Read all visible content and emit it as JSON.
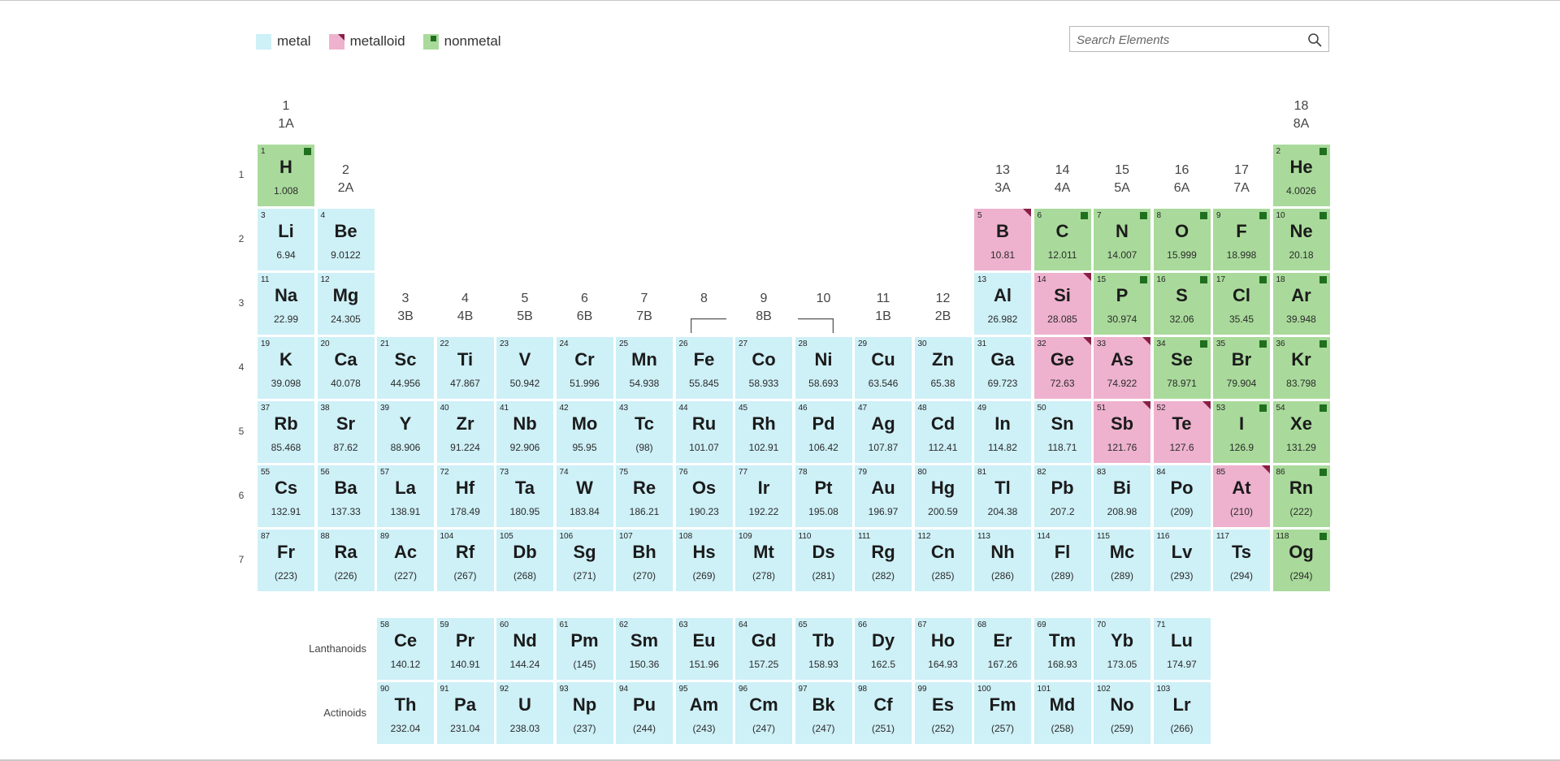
{
  "legend": [
    {
      "label": "metal",
      "type": "metal"
    },
    {
      "label": "metalloid",
      "type": "metalloid"
    },
    {
      "label": "nonmetal",
      "type": "nonmetal"
    }
  ],
  "search": {
    "placeholder": "Search Elements"
  },
  "icons": {
    "search": "search-icon"
  },
  "colors": {
    "metal": "#cef0f7",
    "metalloid": "#eeb2ce",
    "nonmetal": "#a9da9b",
    "nonmetal_mark": "#1f6f1f",
    "metalloid_mark": "#8a1f45"
  },
  "groups": [
    {
      "col": 1,
      "num": "1",
      "sub": "1A"
    },
    {
      "col": 2,
      "num": "2",
      "sub": "2A"
    },
    {
      "col": 3,
      "num": "3",
      "sub": "3B"
    },
    {
      "col": 4,
      "num": "4",
      "sub": "4B"
    },
    {
      "col": 5,
      "num": "5",
      "sub": "5B"
    },
    {
      "col": 6,
      "num": "6",
      "sub": "6B"
    },
    {
      "col": 7,
      "num": "7",
      "sub": "7B"
    },
    {
      "col": 8,
      "num": "8",
      "sub": ""
    },
    {
      "col": 9,
      "num": "9",
      "sub": "8B"
    },
    {
      "col": 10,
      "num": "10",
      "sub": ""
    },
    {
      "col": 11,
      "num": "11",
      "sub": "1B"
    },
    {
      "col": 12,
      "num": "12",
      "sub": "2B"
    },
    {
      "col": 13,
      "num": "13",
      "sub": "3A"
    },
    {
      "col": 14,
      "num": "14",
      "sub": "4A"
    },
    {
      "col": 15,
      "num": "15",
      "sub": "5A"
    },
    {
      "col": 16,
      "num": "16",
      "sub": "6A"
    },
    {
      "col": 17,
      "num": "17",
      "sub": "7A"
    },
    {
      "col": 18,
      "num": "18",
      "sub": "8A"
    }
  ],
  "periods": [
    "1",
    "2",
    "3",
    "4",
    "5",
    "6",
    "7"
  ],
  "series_labels": {
    "lanthanoids": "Lanthanoids",
    "actinoids": "Actinoids"
  },
  "elements": [
    {
      "n": "1",
      "s": "H",
      "m": "1.008",
      "t": "nonmetal",
      "r": 1,
      "c": 1
    },
    {
      "n": "2",
      "s": "He",
      "m": "4.0026",
      "t": "nonmetal",
      "r": 1,
      "c": 18
    },
    {
      "n": "3",
      "s": "Li",
      "m": "6.94",
      "t": "metal",
      "r": 2,
      "c": 1
    },
    {
      "n": "4",
      "s": "Be",
      "m": "9.0122",
      "t": "metal",
      "r": 2,
      "c": 2
    },
    {
      "n": "5",
      "s": "B",
      "m": "10.81",
      "t": "metalloid",
      "r": 2,
      "c": 13
    },
    {
      "n": "6",
      "s": "C",
      "m": "12.011",
      "t": "nonmetal",
      "r": 2,
      "c": 14
    },
    {
      "n": "7",
      "s": "N",
      "m": "14.007",
      "t": "nonmetal",
      "r": 2,
      "c": 15
    },
    {
      "n": "8",
      "s": "O",
      "m": "15.999",
      "t": "nonmetal",
      "r": 2,
      "c": 16
    },
    {
      "n": "9",
      "s": "F",
      "m": "18.998",
      "t": "nonmetal",
      "r": 2,
      "c": 17
    },
    {
      "n": "10",
      "s": "Ne",
      "m": "20.18",
      "t": "nonmetal",
      "r": 2,
      "c": 18
    },
    {
      "n": "11",
      "s": "Na",
      "m": "22.99",
      "t": "metal",
      "r": 3,
      "c": 1
    },
    {
      "n": "12",
      "s": "Mg",
      "m": "24.305",
      "t": "metal",
      "r": 3,
      "c": 2
    },
    {
      "n": "13",
      "s": "Al",
      "m": "26.982",
      "t": "metal",
      "r": 3,
      "c": 13
    },
    {
      "n": "14",
      "s": "Si",
      "m": "28.085",
      "t": "metalloid",
      "r": 3,
      "c": 14
    },
    {
      "n": "15",
      "s": "P",
      "m": "30.974",
      "t": "nonmetal",
      "r": 3,
      "c": 15
    },
    {
      "n": "16",
      "s": "S",
      "m": "32.06",
      "t": "nonmetal",
      "r": 3,
      "c": 16
    },
    {
      "n": "17",
      "s": "Cl",
      "m": "35.45",
      "t": "nonmetal",
      "r": 3,
      "c": 17
    },
    {
      "n": "18",
      "s": "Ar",
      "m": "39.948",
      "t": "nonmetal",
      "r": 3,
      "c": 18
    },
    {
      "n": "19",
      "s": "K",
      "m": "39.098",
      "t": "metal",
      "r": 4,
      "c": 1
    },
    {
      "n": "20",
      "s": "Ca",
      "m": "40.078",
      "t": "metal",
      "r": 4,
      "c": 2
    },
    {
      "n": "21",
      "s": "Sc",
      "m": "44.956",
      "t": "metal",
      "r": 4,
      "c": 3
    },
    {
      "n": "22",
      "s": "Ti",
      "m": "47.867",
      "t": "metal",
      "r": 4,
      "c": 4
    },
    {
      "n": "23",
      "s": "V",
      "m": "50.942",
      "t": "metal",
      "r": 4,
      "c": 5
    },
    {
      "n": "24",
      "s": "Cr",
      "m": "51.996",
      "t": "metal",
      "r": 4,
      "c": 6
    },
    {
      "n": "25",
      "s": "Mn",
      "m": "54.938",
      "t": "metal",
      "r": 4,
      "c": 7
    },
    {
      "n": "26",
      "s": "Fe",
      "m": "55.845",
      "t": "metal",
      "r": 4,
      "c": 8
    },
    {
      "n": "27",
      "s": "Co",
      "m": "58.933",
      "t": "metal",
      "r": 4,
      "c": 9
    },
    {
      "n": "28",
      "s": "Ni",
      "m": "58.693",
      "t": "metal",
      "r": 4,
      "c": 10
    },
    {
      "n": "29",
      "s": "Cu",
      "m": "63.546",
      "t": "metal",
      "r": 4,
      "c": 11
    },
    {
      "n": "30",
      "s": "Zn",
      "m": "65.38",
      "t": "metal",
      "r": 4,
      "c": 12
    },
    {
      "n": "31",
      "s": "Ga",
      "m": "69.723",
      "t": "metal",
      "r": 4,
      "c": 13
    },
    {
      "n": "32",
      "s": "Ge",
      "m": "72.63",
      "t": "metalloid",
      "r": 4,
      "c": 14
    },
    {
      "n": "33",
      "s": "As",
      "m": "74.922",
      "t": "metalloid",
      "r": 4,
      "c": 15
    },
    {
      "n": "34",
      "s": "Se",
      "m": "78.971",
      "t": "nonmetal",
      "r": 4,
      "c": 16
    },
    {
      "n": "35",
      "s": "Br",
      "m": "79.904",
      "t": "nonmetal",
      "r": 4,
      "c": 17
    },
    {
      "n": "36",
      "s": "Kr",
      "m": "83.798",
      "t": "nonmetal",
      "r": 4,
      "c": 18
    },
    {
      "n": "37",
      "s": "Rb",
      "m": "85.468",
      "t": "metal",
      "r": 5,
      "c": 1
    },
    {
      "n": "38",
      "s": "Sr",
      "m": "87.62",
      "t": "metal",
      "r": 5,
      "c": 2
    },
    {
      "n": "39",
      "s": "Y",
      "m": "88.906",
      "t": "metal",
      "r": 5,
      "c": 3
    },
    {
      "n": "40",
      "s": "Zr",
      "m": "91.224",
      "t": "metal",
      "r": 5,
      "c": 4
    },
    {
      "n": "41",
      "s": "Nb",
      "m": "92.906",
      "t": "metal",
      "r": 5,
      "c": 5
    },
    {
      "n": "42",
      "s": "Mo",
      "m": "95.95",
      "t": "metal",
      "r": 5,
      "c": 6
    },
    {
      "n": "43",
      "s": "Tc",
      "m": "(98)",
      "t": "metal",
      "r": 5,
      "c": 7
    },
    {
      "n": "44",
      "s": "Ru",
      "m": "101.07",
      "t": "metal",
      "r": 5,
      "c": 8
    },
    {
      "n": "45",
      "s": "Rh",
      "m": "102.91",
      "t": "metal",
      "r": 5,
      "c": 9
    },
    {
      "n": "46",
      "s": "Pd",
      "m": "106.42",
      "t": "metal",
      "r": 5,
      "c": 10
    },
    {
      "n": "47",
      "s": "Ag",
      "m": "107.87",
      "t": "metal",
      "r": 5,
      "c": 11
    },
    {
      "n": "48",
      "s": "Cd",
      "m": "112.41",
      "t": "metal",
      "r": 5,
      "c": 12
    },
    {
      "n": "49",
      "s": "In",
      "m": "114.82",
      "t": "metal",
      "r": 5,
      "c": 13
    },
    {
      "n": "50",
      "s": "Sn",
      "m": "118.71",
      "t": "metal",
      "r": 5,
      "c": 14
    },
    {
      "n": "51",
      "s": "Sb",
      "m": "121.76",
      "t": "metalloid",
      "r": 5,
      "c": 15
    },
    {
      "n": "52",
      "s": "Te",
      "m": "127.6",
      "t": "metalloid",
      "r": 5,
      "c": 16
    },
    {
      "n": "53",
      "s": "I",
      "m": "126.9",
      "t": "nonmetal",
      "r": 5,
      "c": 17
    },
    {
      "n": "54",
      "s": "Xe",
      "m": "131.29",
      "t": "nonmetal",
      "r": 5,
      "c": 18
    },
    {
      "n": "55",
      "s": "Cs",
      "m": "132.91",
      "t": "metal",
      "r": 6,
      "c": 1
    },
    {
      "n": "56",
      "s": "Ba",
      "m": "137.33",
      "t": "metal",
      "r": 6,
      "c": 2
    },
    {
      "n": "57",
      "s": "La",
      "m": "138.91",
      "t": "metal",
      "r": 6,
      "c": 3
    },
    {
      "n": "72",
      "s": "Hf",
      "m": "178.49",
      "t": "metal",
      "r": 6,
      "c": 4
    },
    {
      "n": "73",
      "s": "Ta",
      "m": "180.95",
      "t": "metal",
      "r": 6,
      "c": 5
    },
    {
      "n": "74",
      "s": "W",
      "m": "183.84",
      "t": "metal",
      "r": 6,
      "c": 6
    },
    {
      "n": "75",
      "s": "Re",
      "m": "186.21",
      "t": "metal",
      "r": 6,
      "c": 7
    },
    {
      "n": "76",
      "s": "Os",
      "m": "190.23",
      "t": "metal",
      "r": 6,
      "c": 8
    },
    {
      "n": "77",
      "s": "Ir",
      "m": "192.22",
      "t": "metal",
      "r": 6,
      "c": 9
    },
    {
      "n": "78",
      "s": "Pt",
      "m": "195.08",
      "t": "metal",
      "r": 6,
      "c": 10
    },
    {
      "n": "79",
      "s": "Au",
      "m": "196.97",
      "t": "metal",
      "r": 6,
      "c": 11
    },
    {
      "n": "80",
      "s": "Hg",
      "m": "200.59",
      "t": "metal",
      "r": 6,
      "c": 12
    },
    {
      "n": "81",
      "s": "Tl",
      "m": "204.38",
      "t": "metal",
      "r": 6,
      "c": 13
    },
    {
      "n": "82",
      "s": "Pb",
      "m": "207.2",
      "t": "metal",
      "r": 6,
      "c": 14
    },
    {
      "n": "83",
      "s": "Bi",
      "m": "208.98",
      "t": "metal",
      "r": 6,
      "c": 15
    },
    {
      "n": "84",
      "s": "Po",
      "m": "(209)",
      "t": "metal",
      "r": 6,
      "c": 16
    },
    {
      "n": "85",
      "s": "At",
      "m": "(210)",
      "t": "metalloid",
      "r": 6,
      "c": 17
    },
    {
      "n": "86",
      "s": "Rn",
      "m": "(222)",
      "t": "nonmetal",
      "r": 6,
      "c": 18
    },
    {
      "n": "87",
      "s": "Fr",
      "m": "(223)",
      "t": "metal",
      "r": 7,
      "c": 1
    },
    {
      "n": "88",
      "s": "Ra",
      "m": "(226)",
      "t": "metal",
      "r": 7,
      "c": 2
    },
    {
      "n": "89",
      "s": "Ac",
      "m": "(227)",
      "t": "metal",
      "r": 7,
      "c": 3
    },
    {
      "n": "104",
      "s": "Rf",
      "m": "(267)",
      "t": "metal",
      "r": 7,
      "c": 4
    },
    {
      "n": "105",
      "s": "Db",
      "m": "(268)",
      "t": "metal",
      "r": 7,
      "c": 5
    },
    {
      "n": "106",
      "s": "Sg",
      "m": "(271)",
      "t": "metal",
      "r": 7,
      "c": 6
    },
    {
      "n": "107",
      "s": "Bh",
      "m": "(270)",
      "t": "metal",
      "r": 7,
      "c": 7
    },
    {
      "n": "108",
      "s": "Hs",
      "m": "(269)",
      "t": "metal",
      "r": 7,
      "c": 8
    },
    {
      "n": "109",
      "s": "Mt",
      "m": "(278)",
      "t": "metal",
      "r": 7,
      "c": 9
    },
    {
      "n": "110",
      "s": "Ds",
      "m": "(281)",
      "t": "metal",
      "r": 7,
      "c": 10
    },
    {
      "n": "111",
      "s": "Rg",
      "m": "(282)",
      "t": "metal",
      "r": 7,
      "c": 11
    },
    {
      "n": "112",
      "s": "Cn",
      "m": "(285)",
      "t": "metal",
      "r": 7,
      "c": 12
    },
    {
      "n": "113",
      "s": "Nh",
      "m": "(286)",
      "t": "metal",
      "r": 7,
      "c": 13
    },
    {
      "n": "114",
      "s": "Fl",
      "m": "(289)",
      "t": "metal",
      "r": 7,
      "c": 14
    },
    {
      "n": "115",
      "s": "Mc",
      "m": "(289)",
      "t": "metal",
      "r": 7,
      "c": 15
    },
    {
      "n": "116",
      "s": "Lv",
      "m": "(293)",
      "t": "metal",
      "r": 7,
      "c": 16
    },
    {
      "n": "117",
      "s": "Ts",
      "m": "(294)",
      "t": "metal",
      "r": 7,
      "c": 17
    },
    {
      "n": "118",
      "s": "Og",
      "m": "(294)",
      "t": "nonmetal",
      "r": 7,
      "c": 18
    }
  ],
  "lanthanoids": [
    {
      "n": "58",
      "s": "Ce",
      "m": "140.12",
      "t": "metal"
    },
    {
      "n": "59",
      "s": "Pr",
      "m": "140.91",
      "t": "metal"
    },
    {
      "n": "60",
      "s": "Nd",
      "m": "144.24",
      "t": "metal"
    },
    {
      "n": "61",
      "s": "Pm",
      "m": "(145)",
      "t": "metal"
    },
    {
      "n": "62",
      "s": "Sm",
      "m": "150.36",
      "t": "metal"
    },
    {
      "n": "63",
      "s": "Eu",
      "m": "151.96",
      "t": "metal"
    },
    {
      "n": "64",
      "s": "Gd",
      "m": "157.25",
      "t": "metal"
    },
    {
      "n": "65",
      "s": "Tb",
      "m": "158.93",
      "t": "metal"
    },
    {
      "n": "66",
      "s": "Dy",
      "m": "162.5",
      "t": "metal"
    },
    {
      "n": "67",
      "s": "Ho",
      "m": "164.93",
      "t": "metal"
    },
    {
      "n": "68",
      "s": "Er",
      "m": "167.26",
      "t": "metal"
    },
    {
      "n": "69",
      "s": "Tm",
      "m": "168.93",
      "t": "metal"
    },
    {
      "n": "70",
      "s": "Yb",
      "m": "173.05",
      "t": "metal"
    },
    {
      "n": "71",
      "s": "Lu",
      "m": "174.97",
      "t": "metal"
    }
  ],
  "actinoids": [
    {
      "n": "90",
      "s": "Th",
      "m": "232.04",
      "t": "metal"
    },
    {
      "n": "91",
      "s": "Pa",
      "m": "231.04",
      "t": "metal"
    },
    {
      "n": "92",
      "s": "U",
      "m": "238.03",
      "t": "metal"
    },
    {
      "n": "93",
      "s": "Np",
      "m": "(237)",
      "t": "metal"
    },
    {
      "n": "94",
      "s": "Pu",
      "m": "(244)",
      "t": "metal"
    },
    {
      "n": "95",
      "s": "Am",
      "m": "(243)",
      "t": "metal"
    },
    {
      "n": "96",
      "s": "Cm",
      "m": "(247)",
      "t": "metal"
    },
    {
      "n": "97",
      "s": "Bk",
      "m": "(247)",
      "t": "metal"
    },
    {
      "n": "98",
      "s": "Cf",
      "m": "(251)",
      "t": "metal"
    },
    {
      "n": "99",
      "s": "Es",
      "m": "(252)",
      "t": "metal"
    },
    {
      "n": "100",
      "s": "Fm",
      "m": "(257)",
      "t": "metal"
    },
    {
      "n": "101",
      "s": "Md",
      "m": "(258)",
      "t": "metal"
    },
    {
      "n": "102",
      "s": "No",
      "m": "(259)",
      "t": "metal"
    },
    {
      "n": "103",
      "s": "Lr",
      "m": "(266)",
      "t": "metal"
    }
  ]
}
